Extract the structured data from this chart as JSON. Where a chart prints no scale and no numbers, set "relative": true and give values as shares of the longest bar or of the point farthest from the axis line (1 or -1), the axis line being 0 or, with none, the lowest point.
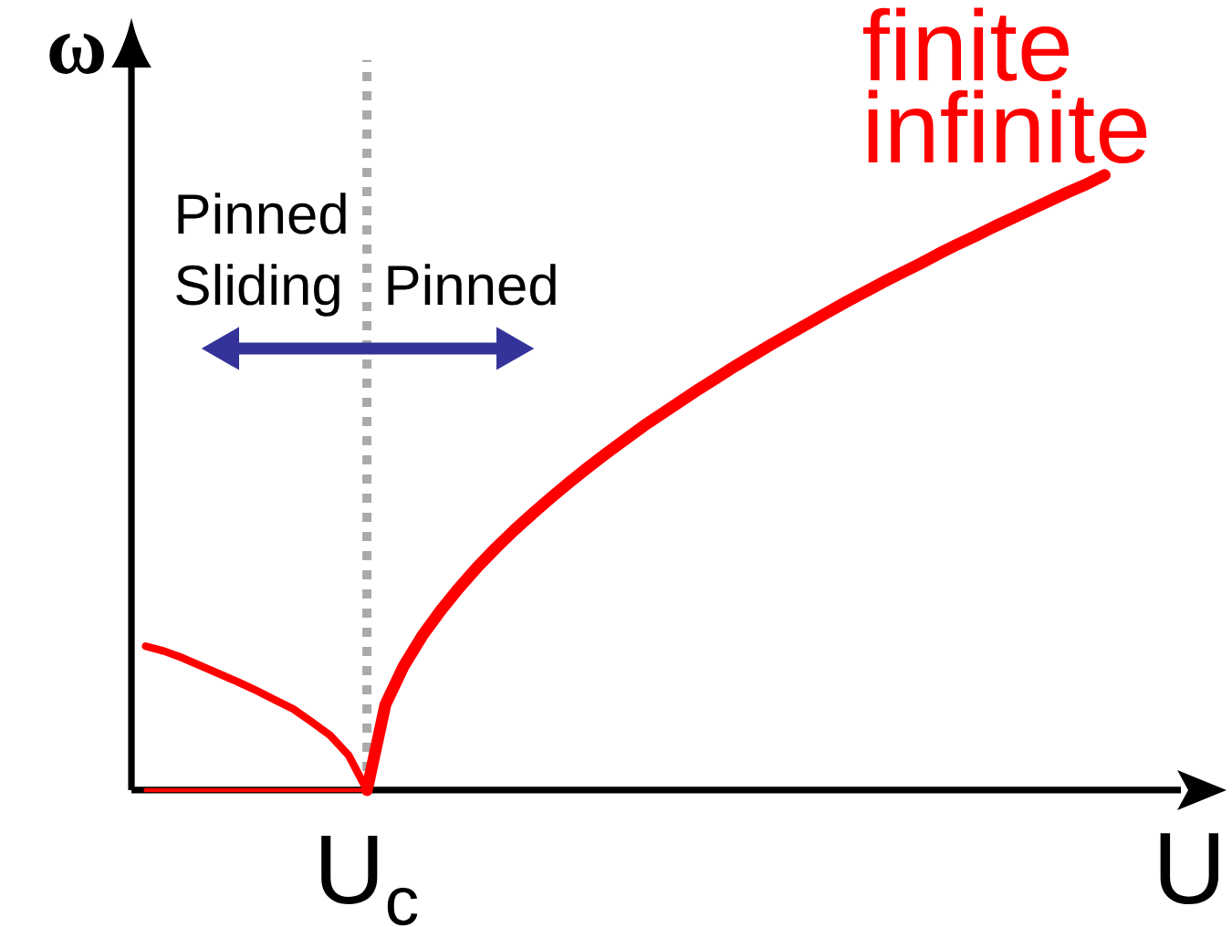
{
  "chart_data": {
    "type": "line",
    "xlabel": "U",
    "ylabel": "ω",
    "relative": true,
    "marker": "none",
    "categories": [
      null,
      null,
      null,
      null,
      null,
      null,
      null,
      null,
      null,
      null,
      null,
      null,
      null,
      null,
      null,
      null,
      null,
      null,
      null,
      null,
      null,
      null,
      null,
      null,
      null,
      null,
      null,
      null,
      null,
      null,
      null,
      null,
      null,
      null,
      null,
      null,
      null,
      null,
      null,
      null,
      null,
      null,
      null,
      null,
      null,
      null,
      null,
      null,
      null,
      null,
      null,
      null,
      null
    ],
    "annotations": [
      "Sliding",
      "Pinned",
      "Pinned",
      "finite",
      "infinite",
      "U$_{c}$"
    ],
    "series": [
      {
        "color": "#ff0000",
        "values": [
          0,
          0,
          0,
          0,
          0,
          0,
          0,
          0,
          0,
          0,
          0,
          0,
          0,
          null,
          null,
          null,
          null,
          null,
          null,
          null,
          null,
          null,
          null,
          null,
          null,
          null,
          null,
          null,
          null,
          null,
          null,
          null,
          null,
          null,
          null,
          null,
          null,
          null,
          null,
          null,
          null,
          null,
          null,
          null,
          null,
          null,
          null,
          null,
          null,
          null,
          null,
          null,
          null
        ]
      },
      {
        "color": "#ff0000",
        "values": [
          0.234,
          0.226,
          0.215,
          0.202,
          0.189,
          0.176,
          0.162,
          0.147,
          0.132,
          0.111,
          0.089,
          0.057,
          0,
          null,
          null,
          null,
          null,
          null,
          null,
          null,
          null,
          null,
          null,
          null,
          null,
          null,
          null,
          null,
          null,
          null,
          null,
          null,
          null,
          null,
          null,
          null,
          null,
          null,
          null,
          null,
          null,
          null,
          null,
          null,
          null,
          null,
          null,
          null,
          null,
          null,
          null,
          null,
          null
        ]
      },
      {
        "color": "#ff0000",
        "values": [
          null,
          null,
          null,
          null,
          null,
          null,
          null,
          null,
          null,
          null,
          null,
          null,
          0,
          0.139,
          0.202,
          0.251,
          0.292,
          0.329,
          0.363,
          0.394,
          0.423,
          0.45,
          0.476,
          0.501,
          0.525,
          0.548,
          0.57,
          0.592,
          0.612,
          0.632,
          0.652,
          0.671,
          0.69,
          0.708,
          0.726,
          0.743,
          0.76,
          0.777,
          0.794,
          0.81,
          0.826,
          0.841,
          0.856,
          0.872,
          0.887,
          0.901,
          0.916,
          0.93,
          0.944,
          0.958,
          0.972,
          0.985,
          1.0
        ]
      }
    ]
  }
}
